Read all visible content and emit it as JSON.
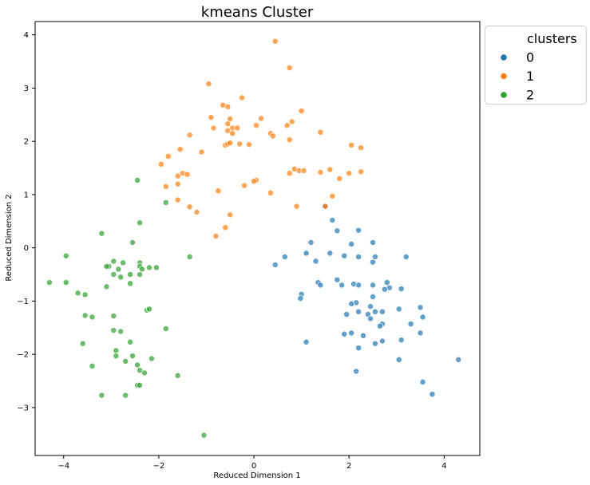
{
  "chart_data": {
    "type": "scatter",
    "title": "kmeans Cluster",
    "xlabel": "Reduced Dimension 1",
    "ylabel": "Reduced Dimension 2",
    "xlim": [
      -4.6,
      4.75
    ],
    "ylim": [
      -3.9,
      4.25
    ],
    "xticks": [
      -4,
      -2,
      0,
      2,
      4
    ],
    "yticks": [
      -3,
      -2,
      -1,
      0,
      1,
      2,
      3,
      4
    ],
    "grid": false,
    "legend": {
      "title": "clusters",
      "placement": "outside-top-right"
    },
    "series": [
      {
        "name": "0",
        "color": "#1f77b4",
        "points": [
          [
            1.5,
            0.78
          ],
          [
            1.65,
            0.52
          ],
          [
            1.75,
            0.32
          ],
          [
            2.2,
            0.33
          ],
          [
            2.5,
            0.1
          ],
          [
            2.05,
            0.07
          ],
          [
            1.2,
            0.1
          ],
          [
            0.45,
            -0.32
          ],
          [
            0.65,
            -0.17
          ],
          [
            1.1,
            -0.1
          ],
          [
            1.3,
            -0.25
          ],
          [
            1.6,
            -0.1
          ],
          [
            1.9,
            -0.15
          ],
          [
            2.2,
            -0.17
          ],
          [
            2.55,
            -0.17
          ],
          [
            3.2,
            -0.17
          ],
          [
            2.5,
            -0.27
          ],
          [
            1.35,
            -0.65
          ],
          [
            1.4,
            -0.7
          ],
          [
            1.75,
            -0.6
          ],
          [
            1.85,
            -0.7
          ],
          [
            2.1,
            -0.68
          ],
          [
            2.2,
            -0.7
          ],
          [
            2.5,
            -0.7
          ],
          [
            2.8,
            -0.65
          ],
          [
            2.85,
            -0.75
          ],
          [
            2.75,
            -0.78
          ],
          [
            3.1,
            -0.77
          ],
          [
            1.0,
            -0.87
          ],
          [
            0.98,
            -0.95
          ],
          [
            2.45,
            -1.1
          ],
          [
            2.5,
            -0.92
          ],
          [
            2.15,
            -1.03
          ],
          [
            2.05,
            -1.05
          ],
          [
            2.4,
            -1.25
          ],
          [
            2.55,
            -1.2
          ],
          [
            1.95,
            -1.25
          ],
          [
            2.2,
            -1.2
          ],
          [
            2.7,
            -1.2
          ],
          [
            3.05,
            -1.15
          ],
          [
            3.5,
            -1.12
          ],
          [
            3.55,
            -1.3
          ],
          [
            2.45,
            -1.33
          ],
          [
            3.3,
            -1.43
          ],
          [
            2.7,
            -1.43
          ],
          [
            2.65,
            -1.47
          ],
          [
            1.9,
            -1.62
          ],
          [
            2.05,
            -1.6
          ],
          [
            3.5,
            -1.6
          ],
          [
            2.3,
            -1.65
          ],
          [
            2.55,
            -1.8
          ],
          [
            2.2,
            -1.88
          ],
          [
            2.7,
            -1.75
          ],
          [
            3.1,
            -1.73
          ],
          [
            1.1,
            -1.77
          ],
          [
            3.05,
            -2.1
          ],
          [
            4.3,
            -2.1
          ],
          [
            2.15,
            -2.32
          ],
          [
            3.55,
            -2.52
          ],
          [
            3.75,
            -2.75
          ]
        ]
      },
      {
        "name": "1",
        "color": "#ff7f0e",
        "points": [
          [
            0.45,
            3.88
          ],
          [
            0.75,
            3.38
          ],
          [
            -0.95,
            3.08
          ],
          [
            -0.25,
            2.82
          ],
          [
            -0.65,
            2.68
          ],
          [
            -0.55,
            2.65
          ],
          [
            1.0,
            2.57
          ],
          [
            -0.9,
            2.45
          ],
          [
            -0.5,
            2.42
          ],
          [
            0.15,
            2.43
          ],
          [
            -0.55,
            2.33
          ],
          [
            0.8,
            2.37
          ],
          [
            0.7,
            2.3
          ],
          [
            -0.45,
            2.25
          ],
          [
            -0.55,
            2.2
          ],
          [
            0.05,
            2.3
          ],
          [
            -0.35,
            2.25
          ],
          [
            -1.35,
            2.12
          ],
          [
            -0.85,
            2.25
          ],
          [
            0.35,
            2.15
          ],
          [
            0.4,
            2.1
          ],
          [
            -0.45,
            2.15
          ],
          [
            1.4,
            2.17
          ],
          [
            -0.6,
            1.93
          ],
          [
            -0.55,
            1.95
          ],
          [
            -0.5,
            1.97
          ],
          [
            -0.3,
            1.95
          ],
          [
            -0.1,
            1.94
          ],
          [
            0.75,
            2.03
          ],
          [
            -1.55,
            1.85
          ],
          [
            -1.1,
            1.8
          ],
          [
            2.05,
            1.93
          ],
          [
            2.25,
            1.88
          ],
          [
            -1.8,
            1.72
          ],
          [
            -1.95,
            1.57
          ],
          [
            -1.5,
            1.4
          ],
          [
            -1.4,
            1.38
          ],
          [
            -1.6,
            1.35
          ],
          [
            0.95,
            1.45
          ],
          [
            0.85,
            1.48
          ],
          [
            1.05,
            1.45
          ],
          [
            1.4,
            1.42
          ],
          [
            1.6,
            1.47
          ],
          [
            2.0,
            1.4
          ],
          [
            2.25,
            1.43
          ],
          [
            0.75,
            1.4
          ],
          [
            1.8,
            1.3
          ],
          [
            -1.85,
            1.15
          ],
          [
            -1.6,
            1.2
          ],
          [
            0.05,
            1.27
          ],
          [
            0.0,
            1.25
          ],
          [
            -0.2,
            1.17
          ],
          [
            -0.75,
            1.07
          ],
          [
            0.35,
            1.03
          ],
          [
            1.65,
            0.97
          ],
          [
            -1.6,
            0.9
          ],
          [
            -1.35,
            0.77
          ],
          [
            -1.2,
            0.67
          ],
          [
            -0.5,
            0.62
          ],
          [
            0.9,
            0.78
          ],
          [
            1.5,
            0.78
          ],
          [
            -0.6,
            0.38
          ],
          [
            -0.8,
            0.22
          ]
        ]
      },
      {
        "name": "2",
        "color": "#2ca02c",
        "points": [
          [
            -2.45,
            1.27
          ],
          [
            -1.85,
            0.85
          ],
          [
            -2.4,
            0.47
          ],
          [
            -3.2,
            0.27
          ],
          [
            -2.55,
            0.1
          ],
          [
            -3.95,
            -0.15
          ],
          [
            -1.35,
            -0.17
          ],
          [
            -2.95,
            -0.25
          ],
          [
            -2.75,
            -0.28
          ],
          [
            -3.05,
            -0.35
          ],
          [
            -3.1,
            -0.35
          ],
          [
            -2.4,
            -0.28
          ],
          [
            -2.4,
            -0.35
          ],
          [
            -2.35,
            -0.4
          ],
          [
            -2.2,
            -0.37
          ],
          [
            -2.05,
            -0.37
          ],
          [
            -2.85,
            -0.4
          ],
          [
            -2.95,
            -0.5
          ],
          [
            -2.6,
            -0.5
          ],
          [
            -2.4,
            -0.5
          ],
          [
            -2.8,
            -0.55
          ],
          [
            -2.6,
            -0.67
          ],
          [
            -4.3,
            -0.65
          ],
          [
            -3.95,
            -0.65
          ],
          [
            -3.1,
            -0.73
          ],
          [
            -3.7,
            -0.85
          ],
          [
            -3.55,
            -0.88
          ],
          [
            -2.25,
            -1.17
          ],
          [
            -2.2,
            -1.15
          ],
          [
            -3.55,
            -1.27
          ],
          [
            -2.95,
            -1.28
          ],
          [
            -3.4,
            -1.3
          ],
          [
            -1.85,
            -1.52
          ],
          [
            -2.95,
            -1.55
          ],
          [
            -2.8,
            -1.57
          ],
          [
            -2.6,
            -1.77
          ],
          [
            -3.6,
            -1.8
          ],
          [
            -2.9,
            -1.93
          ],
          [
            -2.9,
            -2.03
          ],
          [
            -2.55,
            -2.03
          ],
          [
            -2.7,
            -2.13
          ],
          [
            -2.15,
            -2.08
          ],
          [
            -3.4,
            -2.22
          ],
          [
            -2.45,
            -2.2
          ],
          [
            -2.4,
            -2.3
          ],
          [
            -2.3,
            -2.35
          ],
          [
            -1.6,
            -2.4
          ],
          [
            -2.45,
            -2.58
          ],
          [
            -2.4,
            -2.58
          ],
          [
            -3.2,
            -2.77
          ],
          [
            -2.7,
            -2.77
          ],
          [
            -1.05,
            -3.52
          ]
        ]
      }
    ]
  }
}
